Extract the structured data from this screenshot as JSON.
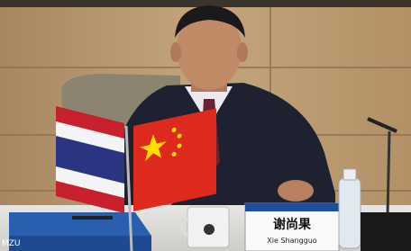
{
  "nameplate": {
    "name_zh": "谢尚果",
    "name_en": "Xie Shangguo"
  },
  "corner_label": "MZU"
}
